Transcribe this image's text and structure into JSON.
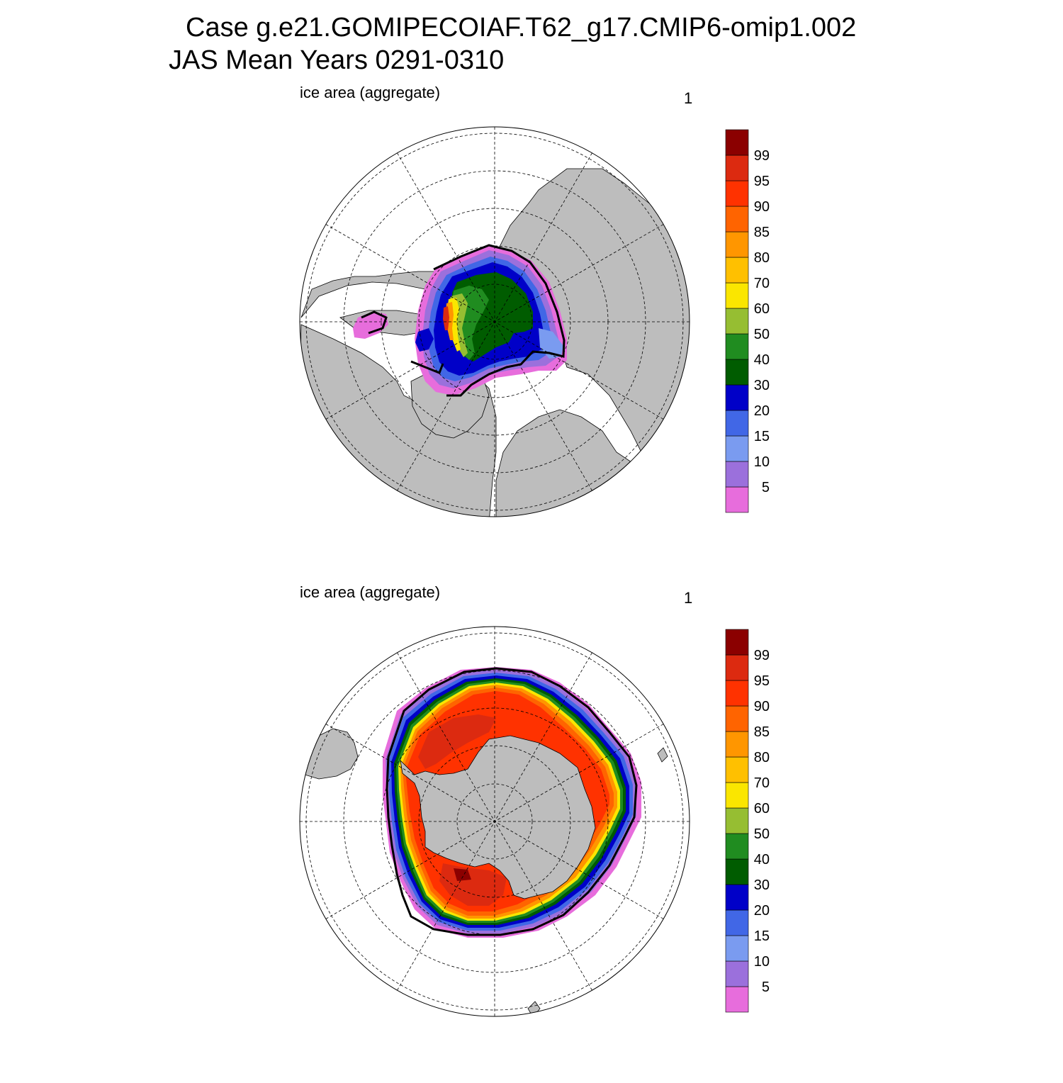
{
  "title": {
    "line1": "Case g.e21.GOMIPECOIAF.T62_g17.CMIP6-omip1.002",
    "line2": "JAS Mean   Years 0291-0310"
  },
  "colors": {
    "land": "#bdbdbd",
    "ocean": "#ffffff",
    "contour_line": "#000000",
    "graticule": "#000000"
  },
  "colorbar": {
    "levels": [
      "",
      "5",
      "10",
      "15",
      "20",
      "30",
      "40",
      "50",
      "60",
      "70",
      "80",
      "85",
      "90",
      "95",
      "99",
      ""
    ],
    "colors": [
      "#e76ddc",
      "#9b70dc",
      "#7a9bf0",
      "#4167e6",
      "#0000c8",
      "#005c00",
      "#208c20",
      "#96be32",
      "#fae600",
      "#ffc000",
      "#ff9600",
      "#ff6400",
      "#ff3200",
      "#dc2a10",
      "#8b0000"
    ]
  },
  "panels": [
    {
      "id": "north",
      "hemisphere": "Arctic",
      "variable_label": "ice area  (aggregate)",
      "units_label": "1"
    },
    {
      "id": "south",
      "hemisphere": "Antarctic",
      "variable_label": "ice area  (aggregate)",
      "units_label": "1"
    }
  ]
}
